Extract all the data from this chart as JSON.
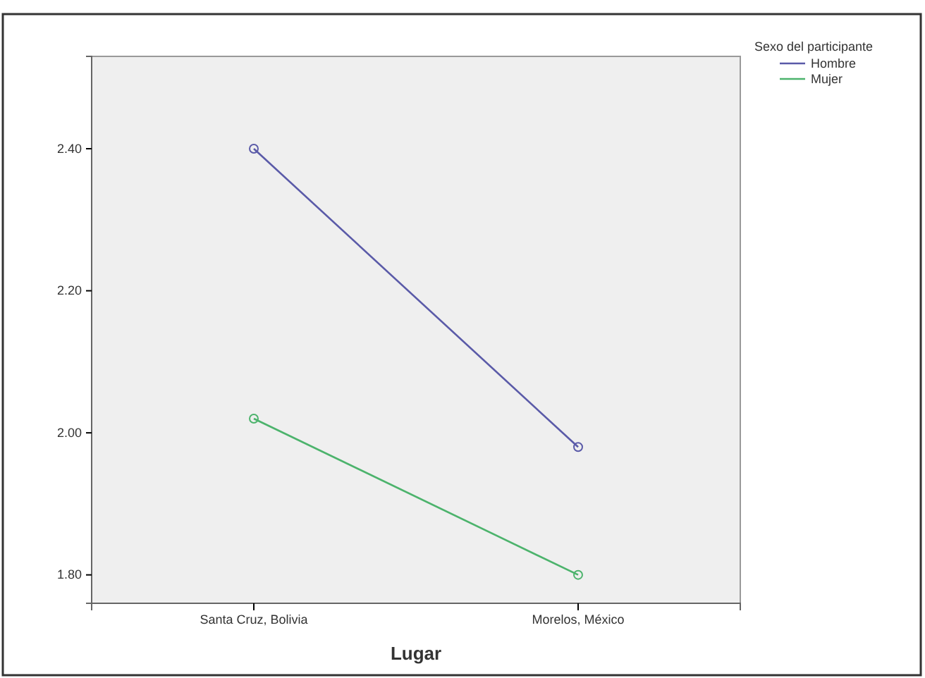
{
  "chart_data": {
    "type": "line",
    "xlabel": "Lugar",
    "legend_title": "Sexo del participante",
    "categories": [
      "Santa Cruz, Bolivia",
      "Morelos, México"
    ],
    "series": [
      {
        "name": "Hombre",
        "color": "#5a5aa8",
        "values": [
          2.4,
          1.98
        ]
      },
      {
        "name": "Mujer",
        "color": "#4cb36c",
        "values": [
          2.02,
          1.8
        ]
      }
    ],
    "ylim": [
      1.76,
      2.53
    ],
    "yticks": [
      {
        "value": 1.8,
        "label": "1.80"
      },
      {
        "value": 2.0,
        "label": "2.00"
      },
      {
        "value": 2.2,
        "label": "2.20"
      },
      {
        "value": 2.4,
        "label": "2.40"
      }
    ],
    "marker": "circle",
    "line_style": "solid",
    "grid": false,
    "legend": "top right"
  }
}
